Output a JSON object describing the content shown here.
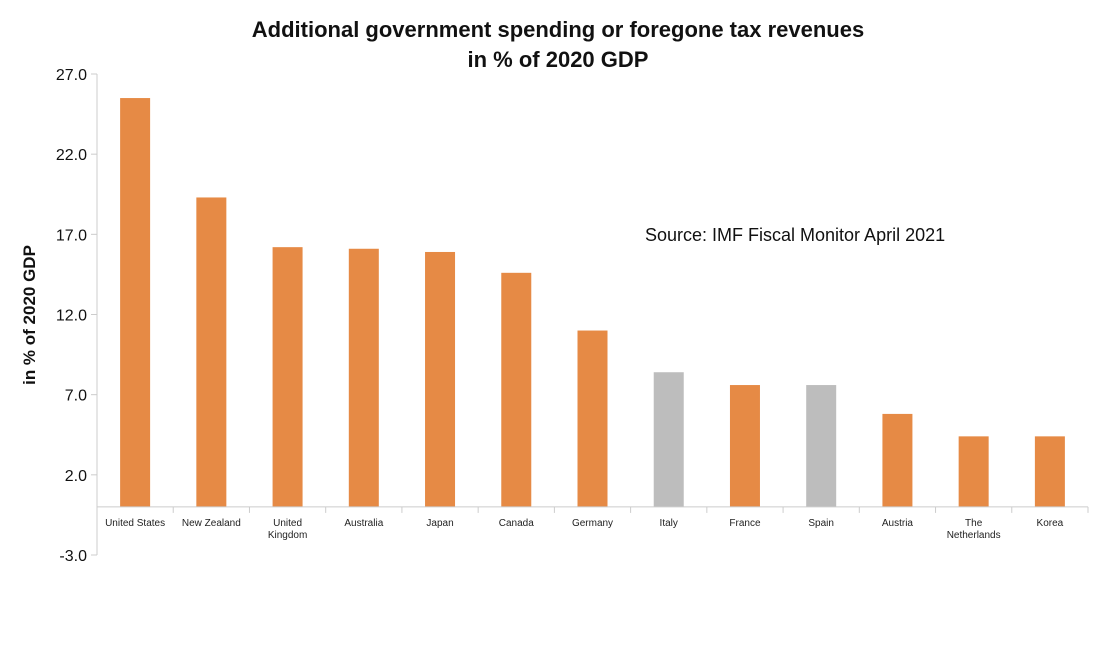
{
  "chart_data": {
    "type": "bar",
    "title": "Additional government spending or foregone tax revenues",
    "subtitle": "in % of 2020 GDP",
    "ylabel": "in % of 2020 GDP",
    "xlabel": "",
    "annotation": "Source: IMF Fiscal Monitor April 2021",
    "categories": [
      "United States",
      "New Zealand",
      "United Kingdom",
      "Australia",
      "Japan",
      "Canada",
      "Germany",
      "Italy",
      "France",
      "Spain",
      "Austria",
      "The Netherlands",
      "Korea"
    ],
    "category_lines": [
      [
        "United States"
      ],
      [
        "New Zealand"
      ],
      [
        "United",
        "Kingdom"
      ],
      [
        "Australia"
      ],
      [
        "Japan"
      ],
      [
        "Canada"
      ],
      [
        "Germany"
      ],
      [
        "Italy"
      ],
      [
        "France"
      ],
      [
        "Spain"
      ],
      [
        "Austria"
      ],
      [
        "The",
        "Netherlands"
      ],
      [
        "Korea"
      ]
    ],
    "values": [
      25.5,
      19.3,
      16.2,
      16.1,
      15.9,
      14.6,
      11.0,
      8.4,
      7.6,
      7.6,
      5.8,
      4.4,
      4.4
    ],
    "colors": [
      "#e68a45",
      "#e68a45",
      "#e68a45",
      "#e68a45",
      "#e68a45",
      "#e68a45",
      "#e68a45",
      "#bdbdbd",
      "#e68a45",
      "#bdbdbd",
      "#e68a45",
      "#e68a45",
      "#e68a45"
    ],
    "yticks": [
      "-3.0",
      "2.0",
      "7.0",
      "12.0",
      "17.0",
      "22.0",
      "27.0"
    ],
    "ylim": [
      -3,
      27
    ],
    "grid": false,
    "legend": "none"
  }
}
